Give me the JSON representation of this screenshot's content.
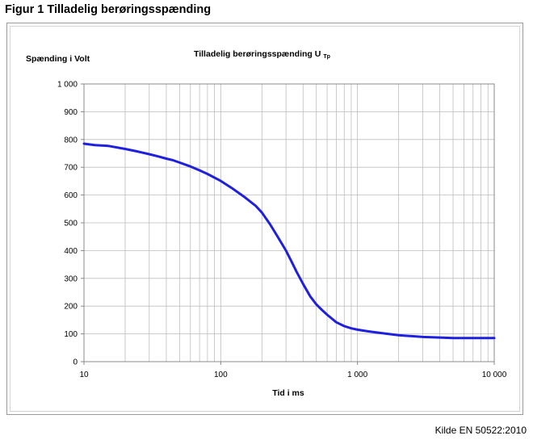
{
  "figure_heading": "Figur 1 Tilladelig berøringsspænding",
  "source_note": "Kilde EN 50522:2010",
  "colors": {
    "curve": "#1f1fe0",
    "gridline": "#bdbdbd",
    "axis": "#888888"
  },
  "chart_data": {
    "type": "line",
    "title": "Tilladelig berøringsspænding U",
    "title_subscript": "Tp",
    "ylabel": "Spænding i Volt",
    "xlabel": "Tid i ms",
    "x_scale": "log",
    "xlim": [
      10,
      10000
    ],
    "ylim": [
      0,
      1000
    ],
    "grid": true,
    "x_tick_labels": [
      "10",
      "100",
      "1 000",
      "10 000"
    ],
    "y_tick_labels": [
      "0",
      "100",
      "200",
      "300",
      "400",
      "500",
      "600",
      "700",
      "800",
      "900",
      "1 000"
    ],
    "series": [
      {
        "x": [
          10,
          12,
          15,
          20,
          25,
          30,
          35,
          40,
          45,
          50,
          60,
          70,
          80,
          100,
          120,
          150,
          180,
          200,
          230,
          260,
          300,
          330,
          360,
          400,
          450,
          500,
          550,
          600,
          700,
          800,
          900,
          1000,
          1200,
          1500,
          2000,
          2500,
          3000,
          4000,
          5000,
          7000,
          10000
        ],
        "y": [
          785,
          780,
          777,
          766,
          756,
          747,
          739,
          731,
          725,
          717,
          703,
          689,
          676,
          651,
          626,
          592,
          561,
          537,
          494,
          451,
          400,
          360,
          322,
          280,
          236,
          206,
          186,
          169,
          142,
          128,
          120,
          115,
          109,
          103,
          95,
          92,
          89,
          87,
          85,
          85,
          85
        ]
      }
    ]
  }
}
